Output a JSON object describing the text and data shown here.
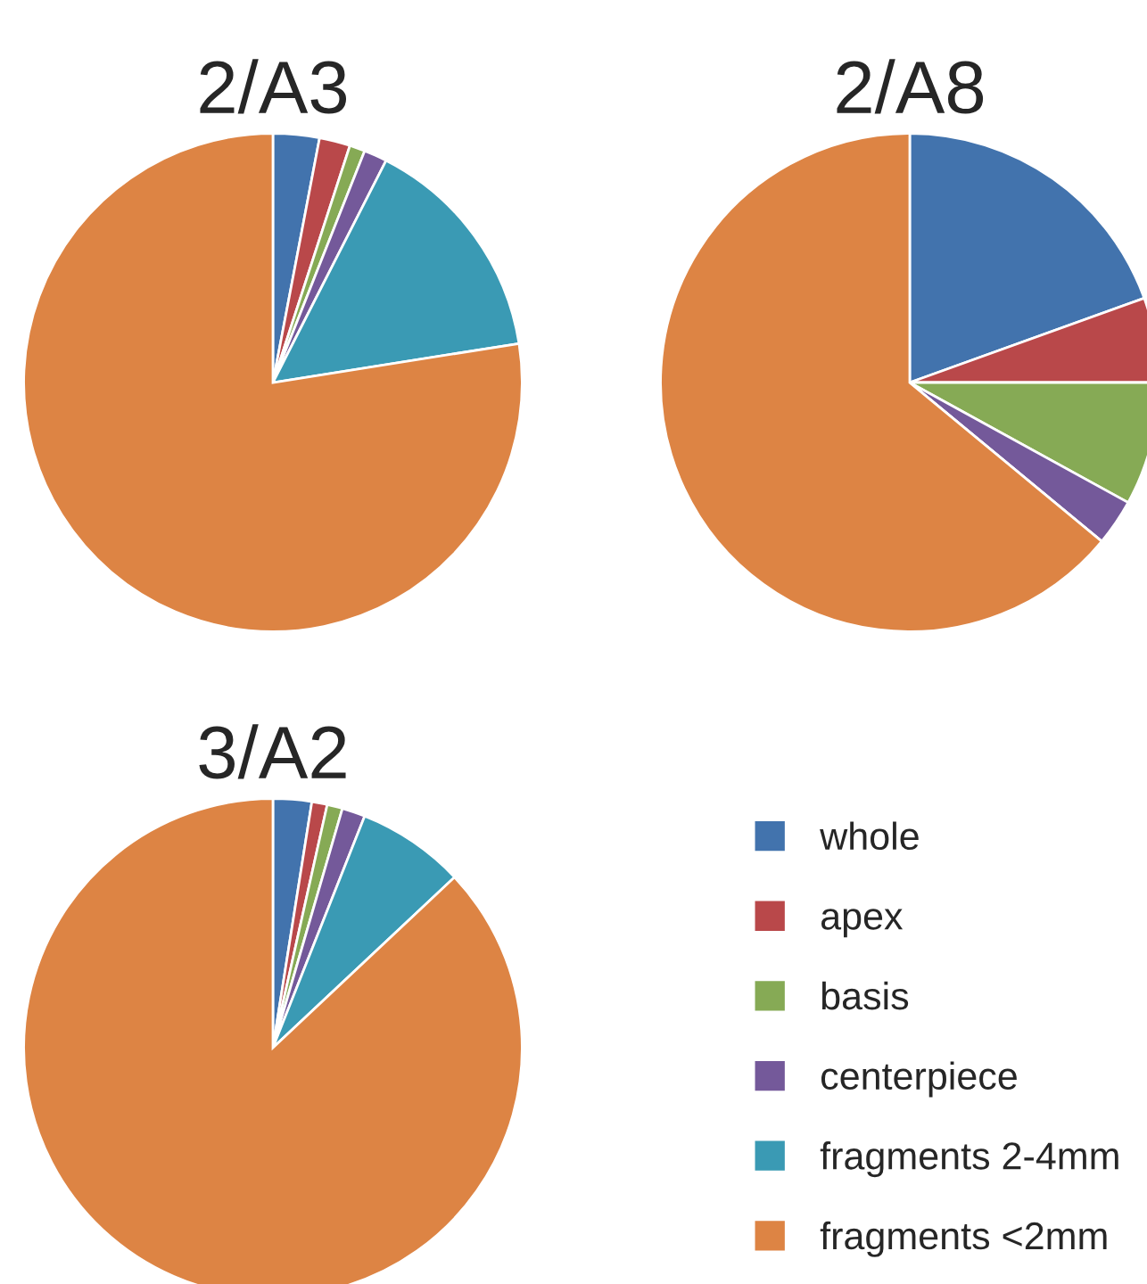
{
  "chart_data": [
    {
      "type": "pie",
      "title": "2/A3",
      "categories": [
        "whole",
        "apex",
        "basis",
        "centerpiece",
        "fragments 2-4mm",
        "fragments <2mm"
      ],
      "values": [
        3,
        2,
        1,
        1.5,
        15,
        77.5
      ],
      "colors": [
        "#4273ad",
        "#b9484a",
        "#86aa55",
        "#74599a",
        "#3a9ab4",
        "#dd8444"
      ],
      "legend": "right"
    },
    {
      "type": "pie",
      "title": "2/A8",
      "categories": [
        null,
        null,
        null,
        null,
        null,
        null
      ],
      "values": [
        19.5,
        5.5,
        8,
        3,
        0,
        64
      ],
      "colors": [
        "#4273ad",
        "#b9484a",
        "#86aa55",
        "#74599a",
        "#3a9ab4",
        "#dd8444"
      ]
    },
    {
      "type": "pie",
      "title": "3/A2",
      "categories": [
        null,
        null,
        null,
        null,
        null,
        null
      ],
      "values": [
        2.5,
        1,
        1,
        1.5,
        7,
        87
      ],
      "colors": [
        "#4273ad",
        "#b9484a",
        "#86aa55",
        "#74599a",
        "#3a9ab4",
        "#dd8444"
      ]
    }
  ]
}
